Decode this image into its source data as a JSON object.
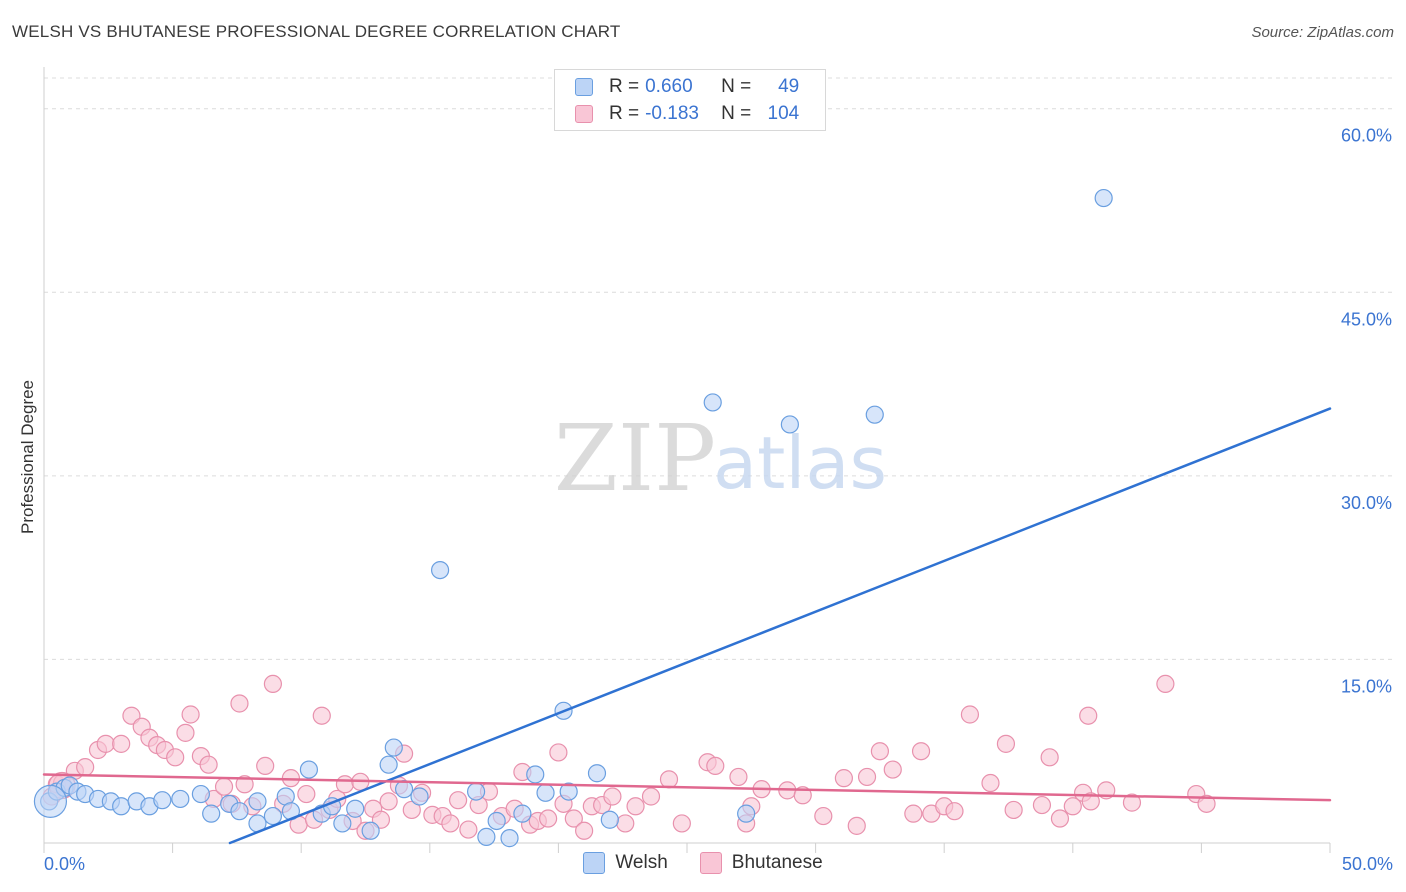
{
  "title": "WELSH VS BHUTANESE PROFESSIONAL DEGREE CORRELATION CHART",
  "source": "Source: ZipAtlas.com",
  "watermark": {
    "zip": "ZIP",
    "atlas": "atlas"
  },
  "stats": {
    "welsh": {
      "r_label": "R =",
      "r_value": "0.660",
      "n_label": "N =",
      "n_value": "49"
    },
    "bhutanese": {
      "r_label": "R =",
      "r_value": "-0.183",
      "n_label": "N =",
      "n_value": "104"
    }
  },
  "legend": {
    "welsh": "Welsh",
    "bhutanese": "Bhutanese"
  },
  "colors": {
    "welsh_fill": "#bcd4f6",
    "welsh_stroke": "#6a9fe0",
    "welsh_line": "#2f72d2",
    "bhutanese_fill": "#f9c6d6",
    "bhutanese_stroke": "#e891ad",
    "bhutanese_line": "#e0688f",
    "tick_text": "#3b74d1",
    "grid": "#dcdcdc"
  },
  "chart_data": {
    "type": "scatter",
    "title": "WELSH VS BHUTANESE PROFESSIONAL DEGREE CORRELATION CHART",
    "xlabel": "",
    "ylabel": "Professional Degree",
    "xlim": [
      0,
      50
    ],
    "ylim": [
      0,
      63
    ],
    "x_tick_labels": [
      "0.0%",
      "50.0%"
    ],
    "y_ticks": [
      {
        "value": 15,
        "label": "15.0%"
      },
      {
        "value": 30,
        "label": "30.0%"
      },
      {
        "value": 45,
        "label": "45.0%"
      },
      {
        "value": 60,
        "label": "60.0%"
      }
    ],
    "series": [
      {
        "name": "Welsh",
        "r": 0.66,
        "n": 49,
        "trend": {
          "x": [
            0,
            50
          ],
          "y": [
            -6.0,
            35.5
          ]
        },
        "points": [
          [
            0.2,
            3.4
          ],
          [
            0.5,
            4.2
          ],
          [
            0.8,
            4.5
          ],
          [
            1.0,
            4.7
          ],
          [
            1.3,
            4.2
          ],
          [
            1.6,
            4.0
          ],
          [
            2.1,
            3.6
          ],
          [
            2.6,
            3.4
          ],
          [
            3.0,
            3.0
          ],
          [
            3.6,
            3.4
          ],
          [
            4.1,
            3.0
          ],
          [
            4.6,
            3.5
          ],
          [
            5.3,
            3.6
          ],
          [
            6.1,
            4.0
          ],
          [
            6.5,
            2.4
          ],
          [
            7.2,
            3.2
          ],
          [
            7.6,
            2.6
          ],
          [
            8.3,
            3.4
          ],
          [
            8.3,
            1.6
          ],
          [
            8.9,
            2.2
          ],
          [
            9.4,
            3.8
          ],
          [
            9.6,
            2.6
          ],
          [
            10.3,
            6.0
          ],
          [
            10.8,
            2.4
          ],
          [
            11.2,
            3.0
          ],
          [
            11.6,
            1.6
          ],
          [
            12.1,
            2.8
          ],
          [
            12.7,
            1.0
          ],
          [
            13.4,
            6.4
          ],
          [
            13.6,
            7.8
          ],
          [
            14.0,
            4.4
          ],
          [
            14.6,
            3.8
          ],
          [
            15.4,
            22.3
          ],
          [
            16.8,
            4.2
          ],
          [
            17.6,
            1.8
          ],
          [
            17.2,
            0.5
          ],
          [
            18.1,
            0.4
          ],
          [
            18.6,
            2.4
          ],
          [
            19.1,
            5.6
          ],
          [
            19.5,
            4.1
          ],
          [
            20.2,
            10.8
          ],
          [
            20.4,
            4.2
          ],
          [
            21.5,
            5.7
          ],
          [
            22.0,
            1.9
          ],
          [
            26.0,
            36.0
          ],
          [
            27.3,
            2.4
          ],
          [
            29.0,
            34.2
          ],
          [
            32.3,
            35.0
          ],
          [
            41.2,
            52.7
          ]
        ]
      },
      {
        "name": "Bhutanese",
        "r": -0.183,
        "n": 104,
        "trend": {
          "x": [
            0,
            50
          ],
          "y": [
            5.6,
            3.5
          ]
        },
        "points": [
          [
            0.3,
            3.8
          ],
          [
            0.5,
            4.8
          ],
          [
            0.7,
            4.9
          ],
          [
            1.2,
            5.9
          ],
          [
            1.6,
            6.2
          ],
          [
            2.1,
            7.6
          ],
          [
            2.4,
            8.1
          ],
          [
            3.0,
            8.1
          ],
          [
            3.4,
            10.4
          ],
          [
            3.8,
            9.5
          ],
          [
            4.1,
            8.6
          ],
          [
            4.4,
            8.0
          ],
          [
            4.7,
            7.6
          ],
          [
            5.1,
            7.0
          ],
          [
            5.5,
            9.0
          ],
          [
            5.7,
            10.5
          ],
          [
            6.1,
            7.1
          ],
          [
            6.4,
            6.4
          ],
          [
            6.6,
            3.6
          ],
          [
            7.0,
            4.6
          ],
          [
            7.3,
            3.2
          ],
          [
            7.6,
            11.4
          ],
          [
            7.8,
            4.8
          ],
          [
            8.1,
            3.0
          ],
          [
            8.6,
            6.3
          ],
          [
            8.9,
            13.0
          ],
          [
            9.3,
            3.2
          ],
          [
            9.6,
            5.3
          ],
          [
            9.9,
            1.5
          ],
          [
            10.2,
            4.0
          ],
          [
            10.5,
            1.9
          ],
          [
            10.8,
            10.4
          ],
          [
            11.1,
            2.7
          ],
          [
            11.4,
            3.6
          ],
          [
            11.7,
            4.8
          ],
          [
            12.0,
            1.8
          ],
          [
            12.3,
            5.0
          ],
          [
            12.5,
            1.0
          ],
          [
            12.8,
            2.8
          ],
          [
            13.1,
            1.9
          ],
          [
            13.4,
            3.4
          ],
          [
            13.8,
            4.7
          ],
          [
            14.0,
            7.3
          ],
          [
            14.3,
            2.7
          ],
          [
            14.7,
            4.1
          ],
          [
            15.1,
            2.3
          ],
          [
            15.5,
            2.2
          ],
          [
            15.8,
            1.6
          ],
          [
            16.1,
            3.5
          ],
          [
            16.5,
            1.1
          ],
          [
            16.9,
            3.1
          ],
          [
            17.3,
            4.2
          ],
          [
            17.8,
            2.2
          ],
          [
            18.3,
            2.8
          ],
          [
            18.6,
            5.8
          ],
          [
            18.9,
            1.5
          ],
          [
            19.2,
            1.8
          ],
          [
            19.6,
            2.0
          ],
          [
            20.0,
            7.4
          ],
          [
            20.2,
            3.2
          ],
          [
            20.6,
            2.0
          ],
          [
            21.0,
            1.0
          ],
          [
            21.3,
            3.0
          ],
          [
            21.7,
            3.1
          ],
          [
            22.1,
            3.8
          ],
          [
            22.6,
            1.6
          ],
          [
            23.0,
            3.0
          ],
          [
            23.6,
            3.8
          ],
          [
            24.3,
            5.2
          ],
          [
            24.8,
            1.6
          ],
          [
            25.8,
            6.6
          ],
          [
            26.1,
            6.3
          ],
          [
            27.0,
            5.4
          ],
          [
            27.3,
            1.6
          ],
          [
            27.5,
            3.0
          ],
          [
            27.9,
            4.4
          ],
          [
            28.9,
            4.3
          ],
          [
            29.5,
            3.9
          ],
          [
            30.3,
            2.2
          ],
          [
            31.1,
            5.3
          ],
          [
            31.6,
            1.4
          ],
          [
            32.0,
            5.4
          ],
          [
            32.5,
            7.5
          ],
          [
            33.0,
            6.0
          ],
          [
            33.8,
            2.4
          ],
          [
            34.1,
            7.5
          ],
          [
            34.5,
            2.4
          ],
          [
            35.0,
            3.0
          ],
          [
            35.4,
            2.6
          ],
          [
            36.0,
            10.5
          ],
          [
            36.8,
            4.9
          ],
          [
            37.4,
            8.1
          ],
          [
            37.7,
            2.7
          ],
          [
            38.8,
            3.1
          ],
          [
            39.1,
            7.0
          ],
          [
            39.5,
            2.0
          ],
          [
            40.0,
            3.0
          ],
          [
            40.4,
            4.1
          ],
          [
            40.6,
            10.4
          ],
          [
            40.7,
            3.4
          ],
          [
            41.3,
            4.3
          ],
          [
            42.3,
            3.3
          ],
          [
            43.6,
            13.0
          ],
          [
            44.8,
            4.0
          ],
          [
            45.2,
            3.2
          ]
        ]
      }
    ]
  }
}
